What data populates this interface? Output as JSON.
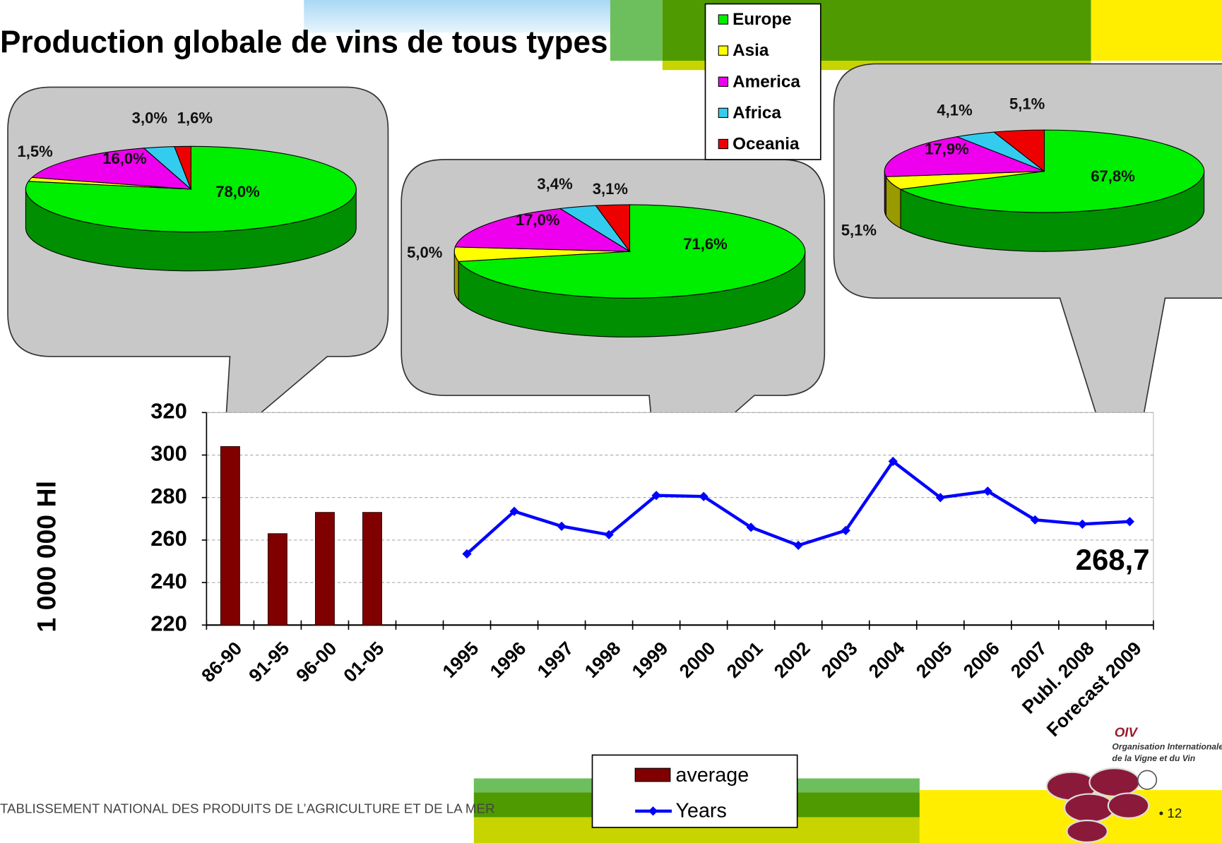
{
  "chart_data": [
    {
      "type": "bar",
      "title": "Production globale de vins de tous types",
      "ylabel": "1 000 000 Hl",
      "categories": [
        "86-90",
        "91-95",
        "96-00",
        "01-05",
        null,
        "1995",
        "1996",
        "1997",
        "1998",
        "1999",
        "2000",
        "2001",
        "2002",
        "2003",
        "2004",
        "2005",
        "2006",
        "2007",
        "Publ. 2008",
        "Forecast 2009"
      ],
      "ylim": [
        220,
        320
      ],
      "yticks": [
        220,
        240,
        260,
        280,
        300,
        320
      ],
      "grid": true,
      "legend": "bottom",
      "series": [
        {
          "name": "average",
          "type": "bar",
          "color": "#800000",
          "values": [
            304,
            263,
            273,
            273,
            null,
            null,
            null,
            null,
            null,
            null,
            null,
            null,
            null,
            null,
            null,
            null,
            null,
            null,
            null,
            null
          ]
        },
        {
          "name": "Years",
          "type": "line",
          "color": "#0000ff",
          "values": [
            null,
            null,
            null,
            null,
            null,
            253.5,
            273.5,
            266.5,
            262.5,
            281,
            280.5,
            266,
            257.5,
            264.5,
            297,
            280,
            283,
            269.5,
            267.5,
            268.7
          ],
          "value_labels": [
            null,
            null,
            null,
            null,
            null,
            null,
            null,
            null,
            null,
            null,
            null,
            null,
            null,
            null,
            null,
            null,
            null,
            null,
            null,
            "268,7"
          ]
        }
      ]
    },
    {
      "type": "pie",
      "categories": [
        "Europe",
        "Asia",
        "America",
        "Africa",
        "Oceania"
      ],
      "colors": [
        "#00ee00",
        "#ffff00",
        "#ee00ee",
        "#33ccee",
        "#ee0000"
      ],
      "legend": "top-right",
      "series": [
        {
          "values": [
            78.0,
            1.5,
            16.0,
            3.0,
            1.6
          ],
          "value_labels": [
            "78,0%",
            "1,5%",
            "16,0%",
            "3,0%",
            "1,6%"
          ]
        },
        {
          "values": [
            71.6,
            5.0,
            17.0,
            3.4,
            3.1
          ],
          "value_labels": [
            "71,6%",
            "5,0%",
            "17,0%",
            "3,4%",
            "3,1%"
          ]
        },
        {
          "values": [
            67.8,
            5.1,
            17.9,
            4.1,
            5.1
          ],
          "value_labels": [
            "67,8%",
            "5,1%",
            "17,9%",
            "4,1%",
            "5,1%"
          ]
        }
      ]
    }
  ],
  "footer": {
    "text": "TABLISSEMENT NATIONAL DES PRODUITS DE L’AGRICULTURE ET DE LA MER",
    "page": "• 12"
  },
  "logo": {
    "name": "OIV",
    "line1": "Organisation Internationale",
    "line2": "de la Vigne et du Vin"
  }
}
